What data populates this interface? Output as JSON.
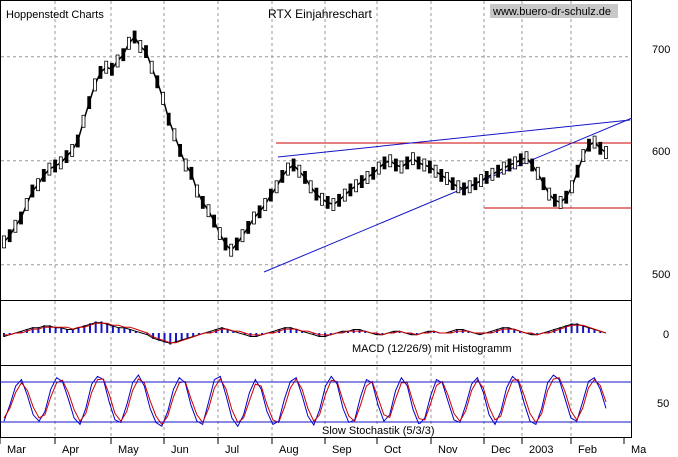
{
  "header": {
    "left": "Hoppenstedt Charts",
    "title": "RTX Einjahreschart",
    "website": "www.buero-dr-schulz.de"
  },
  "chart_data": [
    {
      "type": "line",
      "title": "RTX Einjahreschart",
      "ylim": [
        470,
        745
      ],
      "yticks": [
        "700",
        "600",
        "500"
      ],
      "grid": true,
      "legend": "none",
      "x_labels": [
        "Mar",
        "Apr",
        "May",
        "Jun",
        "Jul",
        "Aug",
        "Sep",
        "Oct",
        "Nov",
        "Dec",
        "2003",
        "Feb",
        "Ma"
      ],
      "series": [
        {
          "values": [
            522,
            528,
            537,
            545,
            558,
            571,
            577,
            586,
            592,
            595,
            598,
            604,
            610,
            619,
            638,
            656,
            673,
            685,
            690,
            688,
            696,
            702,
            713,
            719,
            710,
            705,
            690,
            676,
            660,
            640,
            625,
            610,
            596,
            588,
            571,
            560,
            552,
            542,
            530,
            520,
            514,
            520,
            528,
            536,
            545,
            551,
            558,
            567,
            575,
            585,
            592,
            596,
            590,
            584,
            575,
            568,
            563,
            560,
            558,
            562,
            567,
            572,
            576,
            580,
            584,
            588,
            593,
            598,
            600,
            596,
            594,
            598,
            602,
            598,
            596,
            594,
            590,
            586,
            583,
            578,
            575,
            573,
            575,
            578,
            581,
            584,
            587,
            590,
            593,
            596,
            598,
            601,
            603,
            596,
            588,
            578,
            568,
            562,
            560,
            565,
            575,
            590,
            605,
            615,
            618,
            612,
            608
          ],
          "color": "#000000"
        }
      ],
      "resistance_level": 606,
      "support_level": 555,
      "annotations": []
    },
    {
      "type": "bar",
      "label": "MACD (12/26/9) mit Histogramm",
      "ylim": [
        -15,
        15
      ],
      "yticks": [
        "0"
      ],
      "histogram_color": "#1515c8",
      "series": [
        {
          "values": [
            -2,
            -1,
            0,
            1,
            2,
            3,
            3,
            4,
            4,
            3,
            3,
            2,
            2,
            3,
            4,
            5,
            6,
            6,
            5,
            4,
            3,
            3,
            2,
            1,
            0,
            -1,
            -3,
            -4,
            -5,
            -6,
            -5,
            -4,
            -3,
            -2,
            -1,
            0,
            1,
            2,
            3,
            2,
            1,
            0,
            -1,
            -2,
            -2,
            -1,
            0,
            1,
            2,
            3,
            3,
            2,
            1,
            0,
            -1,
            -2,
            -2,
            -1,
            0,
            1,
            1,
            2,
            2,
            1,
            0,
            -1,
            -1,
            0,
            1,
            1,
            0,
            -1,
            -1,
            0,
            1,
            1,
            0,
            0,
            1,
            2,
            2,
            1,
            0,
            -1,
            0,
            1,
            2,
            3,
            3,
            2,
            1,
            0,
            -1,
            -1,
            0,
            1,
            2,
            3,
            4,
            5,
            5,
            4,
            3,
            2,
            1,
            0
          ],
          "color": "#000000"
        },
        {
          "values": [
            -1,
            -1,
            0,
            0,
            1,
            2,
            2,
            3,
            3,
            3,
            3,
            3,
            2,
            3,
            3,
            4,
            5,
            5,
            5,
            4,
            4,
            3,
            3,
            2,
            1,
            0,
            -2,
            -3,
            -4,
            -5,
            -5,
            -4,
            -3,
            -2,
            -1,
            0,
            0,
            1,
            2,
            2,
            1,
            1,
            0,
            -1,
            -1,
            -1,
            0,
            0,
            1,
            2,
            2,
            2,
            1,
            1,
            0,
            -1,
            -1,
            -1,
            0,
            0,
            1,
            1,
            1,
            1,
            0,
            0,
            -1,
            0,
            0,
            1,
            0,
            0,
            -1,
            0,
            0,
            1,
            0,
            0,
            0,
            1,
            1,
            1,
            0,
            0,
            0,
            0,
            1,
            2,
            2,
            2,
            1,
            0,
            0,
            -1,
            0,
            0,
            1,
            2,
            3,
            4,
            4,
            4,
            3,
            2,
            1,
            0
          ],
          "color": "#cc0000"
        }
      ]
    },
    {
      "type": "line",
      "label": "Slow Stochastik (5/3/3)",
      "ylim": [
        0,
        100
      ],
      "yticks": [
        "50"
      ],
      "bands": [
        80,
        20
      ],
      "series": [
        {
          "values": [
            20,
            45,
            75,
            85,
            60,
            30,
            20,
            35,
            70,
            88,
            82,
            55,
            25,
            15,
            40,
            78,
            90,
            85,
            50,
            22,
            18,
            45,
            80,
            92,
            75,
            40,
            18,
            12,
            35,
            70,
            88,
            80,
            45,
            20,
            15,
            50,
            85,
            90,
            60,
            25,
            12,
            30,
            65,
            85,
            70,
            35,
            15,
            20,
            55,
            82,
            88,
            60,
            28,
            14,
            38,
            75,
            90,
            78,
            40,
            18,
            22,
            58,
            85,
            80,
            45,
            20,
            30,
            68,
            88,
            75,
            38,
            15,
            25,
            60,
            85,
            80,
            50,
            22,
            18,
            45,
            78,
            88,
            65,
            30,
            15,
            35,
            72,
            90,
            82,
            48,
            20,
            15,
            40,
            80,
            92,
            85,
            55,
            25,
            20,
            50,
            82,
            88,
            70,
            40
          ],
          "color": "#0000cc"
        },
        {
          "values": [
            25,
            40,
            65,
            80,
            68,
            42,
            25,
            30,
            58,
            80,
            84,
            65,
            38,
            20,
            32,
            65,
            85,
            86,
            62,
            32,
            20,
            35,
            68,
            86,
            80,
            52,
            28,
            15,
            28,
            58,
            80,
            82,
            55,
            30,
            18,
            40,
            72,
            86,
            70,
            38,
            18,
            25,
            52,
            78,
            75,
            46,
            22,
            18,
            42,
            72,
            86,
            70,
            40,
            20,
            30,
            62,
            84,
            82,
            52,
            28,
            20,
            45,
            75,
            82,
            56,
            30,
            26,
            55,
            80,
            80,
            50,
            24,
            22,
            48,
            76,
            82,
            60,
            32,
            20,
            36,
            68,
            84,
            72,
            42,
            22,
            28,
            60,
            84,
            85,
            60,
            32,
            18,
            32,
            68,
            86,
            88,
            66,
            36,
            22,
            40,
            72,
            85,
            76,
            50
          ],
          "color": "#cc0000"
        }
      ]
    }
  ]
}
